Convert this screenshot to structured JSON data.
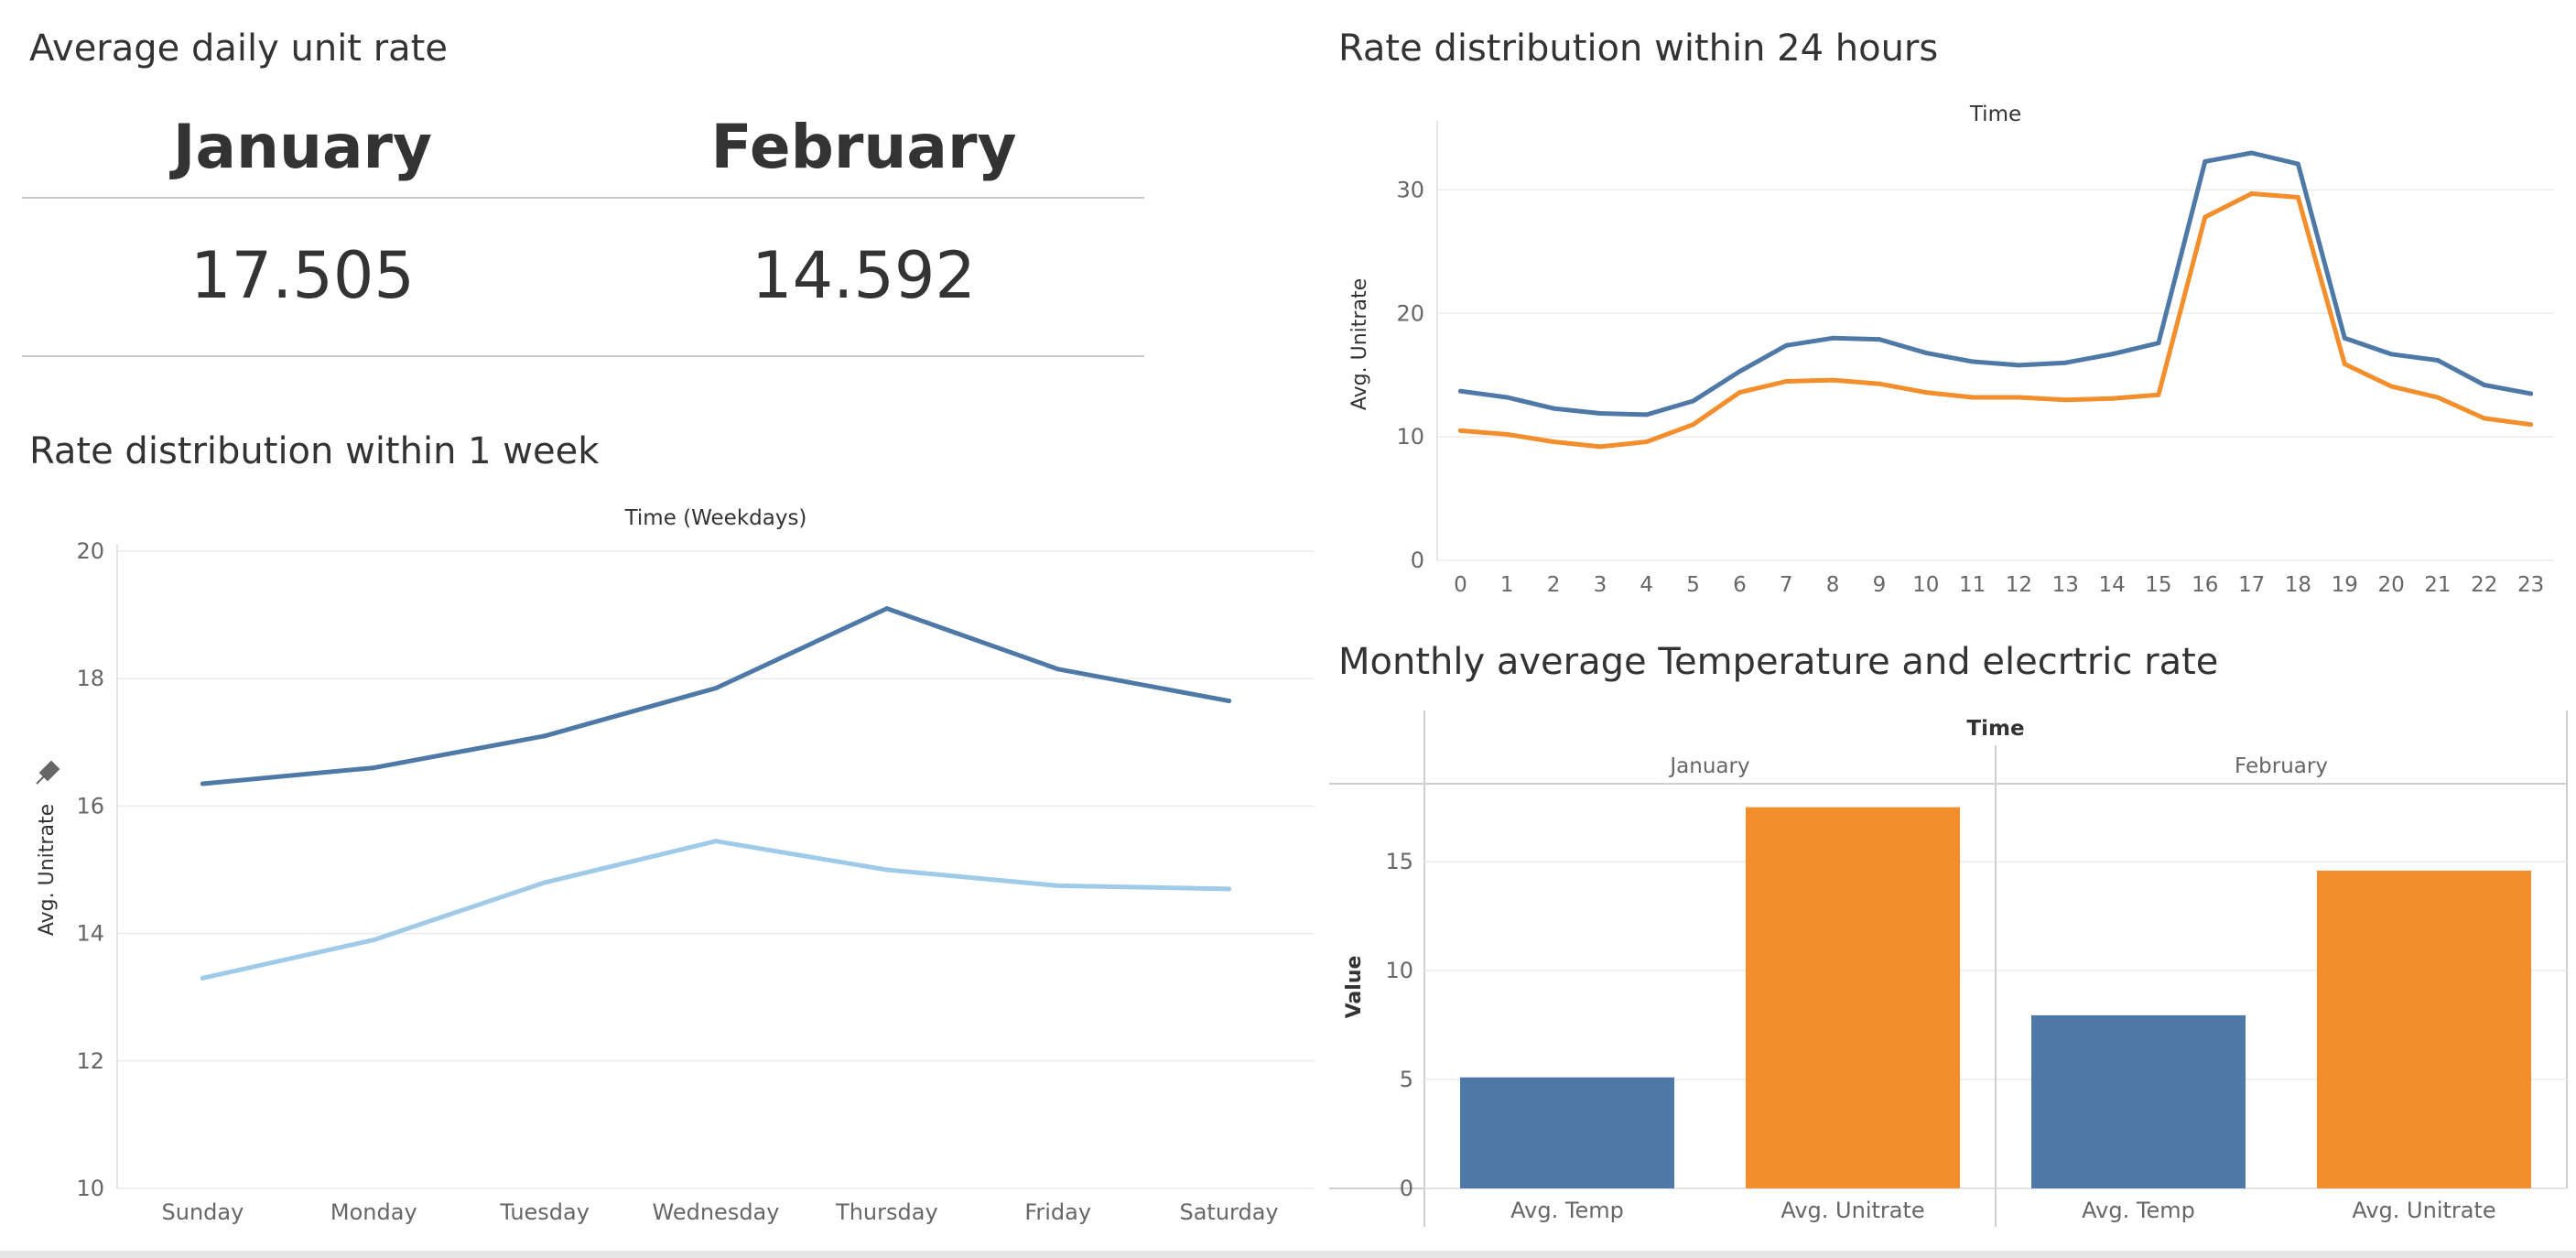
{
  "kpi": {
    "title": "Average daily unit rate",
    "january_label": "January",
    "january_value": "17.505",
    "february_label": "February",
    "february_value": "14.592"
  },
  "chart_data": [
    {
      "type": "line",
      "title": "Rate distribution within 1 week",
      "xlabel": "Time (Weekdays)",
      "ylabel": "Avg. Unitrate",
      "categories": [
        "Sunday",
        "Monday",
        "Tuesday",
        "Wednesday",
        "Thursday",
        "Friday",
        "Saturday"
      ],
      "ylim": [
        10,
        20
      ],
      "yticks": [
        10,
        12,
        14,
        16,
        18,
        20
      ],
      "grid": true,
      "series": [
        {
          "values": [
            16.35,
            16.6,
            17.1,
            17.85,
            19.1,
            18.15,
            17.65
          ],
          "color": "#4e79a7"
        },
        {
          "values": [
            13.3,
            13.9,
            14.8,
            15.45,
            15.0,
            14.75,
            14.7
          ],
          "color": "#a0cbe8"
        }
      ]
    },
    {
      "type": "line",
      "title": "Rate distribution within 24 hours",
      "xlabel": "Time",
      "ylabel": "Avg. Unitrate",
      "categories": [
        "0",
        "1",
        "2",
        "3",
        "4",
        "5",
        "6",
        "7",
        "8",
        "9",
        "10",
        "11",
        "12",
        "13",
        "14",
        "15",
        "16",
        "17",
        "18",
        "19",
        "20",
        "21",
        "22",
        "23"
      ],
      "ylim": [
        0,
        35
      ],
      "yticks": [
        0,
        10,
        20,
        30
      ],
      "grid": true,
      "series": [
        {
          "values": [
            13.7,
            13.2,
            12.3,
            11.9,
            11.8,
            12.9,
            15.3,
            17.4,
            18.0,
            17.9,
            16.8,
            16.1,
            15.8,
            16.0,
            16.7,
            17.6,
            32.3,
            33.0,
            32.1,
            18.0,
            16.7,
            16.2,
            14.2,
            13.5
          ],
          "color": "#4e79a7"
        },
        {
          "values": [
            10.5,
            10.2,
            9.6,
            9.2,
            9.6,
            11.0,
            13.6,
            14.5,
            14.6,
            14.3,
            13.6,
            13.2,
            13.2,
            13.0,
            13.1,
            13.4,
            27.8,
            29.7,
            29.4,
            15.9,
            14.1,
            13.2,
            11.5,
            11.0
          ],
          "color": "#f28e2b"
        }
      ]
    },
    {
      "type": "bar",
      "title": "Monthly average Temperature and elecrtric rate",
      "header": "Time",
      "ylabel": "Value",
      "groups": [
        {
          "name": "January",
          "bars": [
            {
              "label": "Avg. Temp",
              "value": 5.1,
              "color": "#4e79a7"
            },
            {
              "label": "Avg. Unitrate",
              "value": 17.505,
              "color": "#f28e2b"
            }
          ]
        },
        {
          "name": "February",
          "bars": [
            {
              "label": "Avg. Temp",
              "value": 7.95,
              "color": "#4e79a7"
            },
            {
              "label": "Avg. Unitrate",
              "value": 14.592,
              "color": "#f28e2b"
            }
          ]
        }
      ],
      "ylim": [
        0,
        18.5
      ],
      "yticks": [
        0,
        5,
        10,
        15
      ],
      "grid": true
    }
  ]
}
